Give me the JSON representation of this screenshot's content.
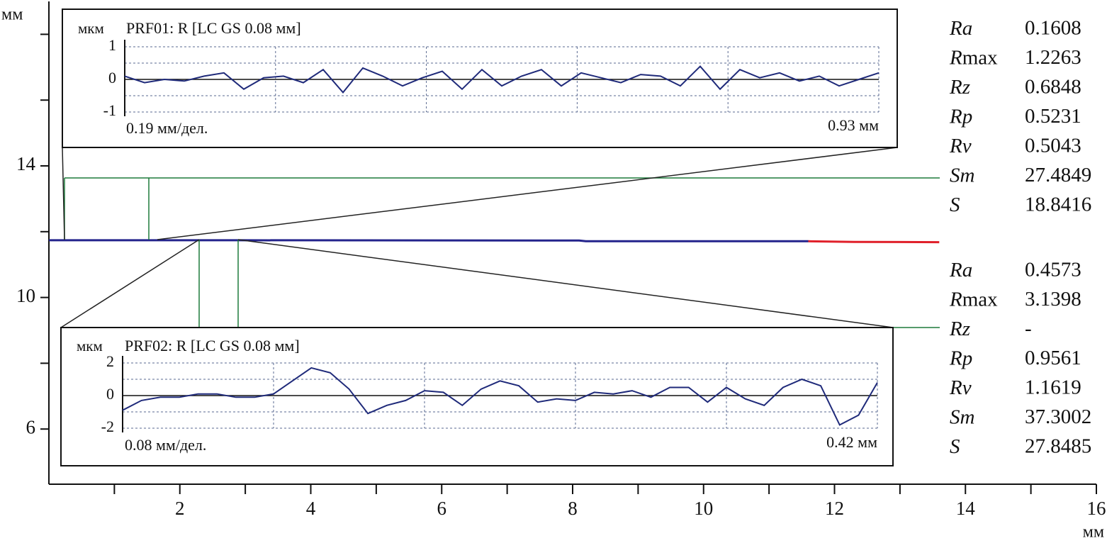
{
  "chart_data": [
    {
      "type": "line",
      "y_label": "мм",
      "x_label": "мм",
      "xlim": [
        0,
        16
      ],
      "ylim": [
        4.3,
        19
      ],
      "xticks": [
        2,
        4,
        6,
        8,
        10,
        12,
        14,
        16
      ],
      "x_minor_ticks": [
        1,
        3,
        5,
        7,
        9,
        11,
        13,
        15
      ],
      "yticks": [
        6,
        10,
        14
      ],
      "y_minor_ticks": [
        8,
        12,
        16,
        18
      ],
      "series": [
        {
          "color": "#23238c",
          "x": [
            0,
            2.3,
            2.9,
            8.1,
            8.2,
            11.6
          ],
          "values": [
            11.74,
            11.74,
            11.74,
            11.73,
            11.71,
            11.71
          ]
        },
        {
          "color": "#e0202a",
          "x": [
            11.6,
            12.3,
            13.6
          ],
          "values": [
            11.71,
            11.69,
            11.68
          ]
        }
      ]
    },
    {
      "type": "line",
      "y_label": "мкм",
      "title": "PRF01: R [LC GS 0.08 мм]",
      "x_label": "0.19 мм/дел.",
      "x_end_label": "0.93 мм",
      "xlim": [
        0,
        0.95
      ],
      "ylim": [
        -1,
        1
      ],
      "yticks": [
        -1,
        0,
        1
      ],
      "ygrid": [
        -1,
        -0.5,
        0.5,
        1
      ],
      "xgrid": [
        0.19,
        0.38,
        0.57,
        0.76
      ],
      "color": "#1f2a7a",
      "x": [
        0,
        0.025,
        0.05,
        0.075,
        0.1,
        0.125,
        0.15,
        0.175,
        0.2,
        0.225,
        0.25,
        0.275,
        0.3,
        0.325,
        0.35,
        0.375,
        0.4,
        0.425,
        0.45,
        0.475,
        0.5,
        0.525,
        0.55,
        0.575,
        0.6,
        0.625,
        0.65,
        0.675,
        0.7,
        0.725,
        0.75,
        0.775,
        0.8,
        0.825,
        0.85,
        0.875,
        0.9,
        0.925,
        0.95
      ],
      "values": [
        0.1,
        -0.1,
        0,
        -0.05,
        0.1,
        0.2,
        -0.3,
        0.05,
        0.1,
        -0.1,
        0.3,
        -0.4,
        0.35,
        0.1,
        -0.2,
        0.05,
        0.25,
        -0.3,
        0.3,
        -0.2,
        0.1,
        0.3,
        -0.2,
        0.2,
        0.05,
        -0.1,
        0.15,
        0.1,
        -0.2,
        0.4,
        -0.3,
        0.3,
        0.05,
        0.2,
        -0.05,
        0.1,
        -0.2,
        0,
        0.2
      ],
      "parameters": [
        {
          "name": "Ra",
          "value": 0.1608
        },
        {
          "name": "Rmax",
          "value": 1.2263
        },
        {
          "name": "Rz",
          "value": 0.6848
        },
        {
          "name": "Rp",
          "value": 0.5231
        },
        {
          "name": "Rv",
          "value": 0.5043
        },
        {
          "name": "Sm",
          "value": 27.4849
        },
        {
          "name": "S",
          "value": 18.8416
        }
      ]
    },
    {
      "type": "line",
      "y_label": "мкм",
      "title": "PRF02: R [LC GS 0.08 мм]",
      "x_label": "0.08 мм/дел.",
      "x_end_label": "0.42 мм",
      "xlim": [
        0,
        0.4
      ],
      "ylim": [
        -2,
        2
      ],
      "yticks": [
        -2,
        0,
        2
      ],
      "ygrid": [
        -2,
        -1,
        1,
        2
      ],
      "xgrid": [
        0.08,
        0.16,
        0.24,
        0.32
      ],
      "color": "#1f2a7a",
      "x": [
        0,
        0.01,
        0.02,
        0.03,
        0.04,
        0.05,
        0.06,
        0.07,
        0.08,
        0.09,
        0.1,
        0.11,
        0.12,
        0.13,
        0.14,
        0.15,
        0.16,
        0.17,
        0.18,
        0.19,
        0.2,
        0.21,
        0.22,
        0.23,
        0.24,
        0.25,
        0.26,
        0.27,
        0.28,
        0.29,
        0.3,
        0.31,
        0.32,
        0.33,
        0.34,
        0.35,
        0.36,
        0.37,
        0.38,
        0.39,
        0.4
      ],
      "values": [
        -0.9,
        -0.3,
        -0.1,
        -0.1,
        0.1,
        0.1,
        -0.1,
        -0.1,
        0.1,
        0.9,
        1.7,
        1.4,
        0.4,
        -1.1,
        -0.6,
        -0.3,
        0.3,
        0.2,
        -0.6,
        0.4,
        0.9,
        0.6,
        -0.4,
        -0.2,
        -0.3,
        0.2,
        0.1,
        0.3,
        -0.1,
        0.5,
        0.5,
        -0.4,
        0.5,
        -0.2,
        -0.6,
        0.5,
        1.0,
        0.6,
        -1.8,
        -1.2,
        0.8
      ],
      "parameters": [
        {
          "name": "Ra",
          "value": 0.4573
        },
        {
          "name": "Rmax",
          "value": 3.1398
        },
        {
          "name": "Rz",
          "value": "-"
        },
        {
          "name": "Rp",
          "value": 0.9561
        },
        {
          "name": "Rv",
          "value": 1.1619
        },
        {
          "name": "Sm",
          "value": 37.3002
        },
        {
          "name": "S",
          "value": 27.8485
        }
      ]
    }
  ]
}
